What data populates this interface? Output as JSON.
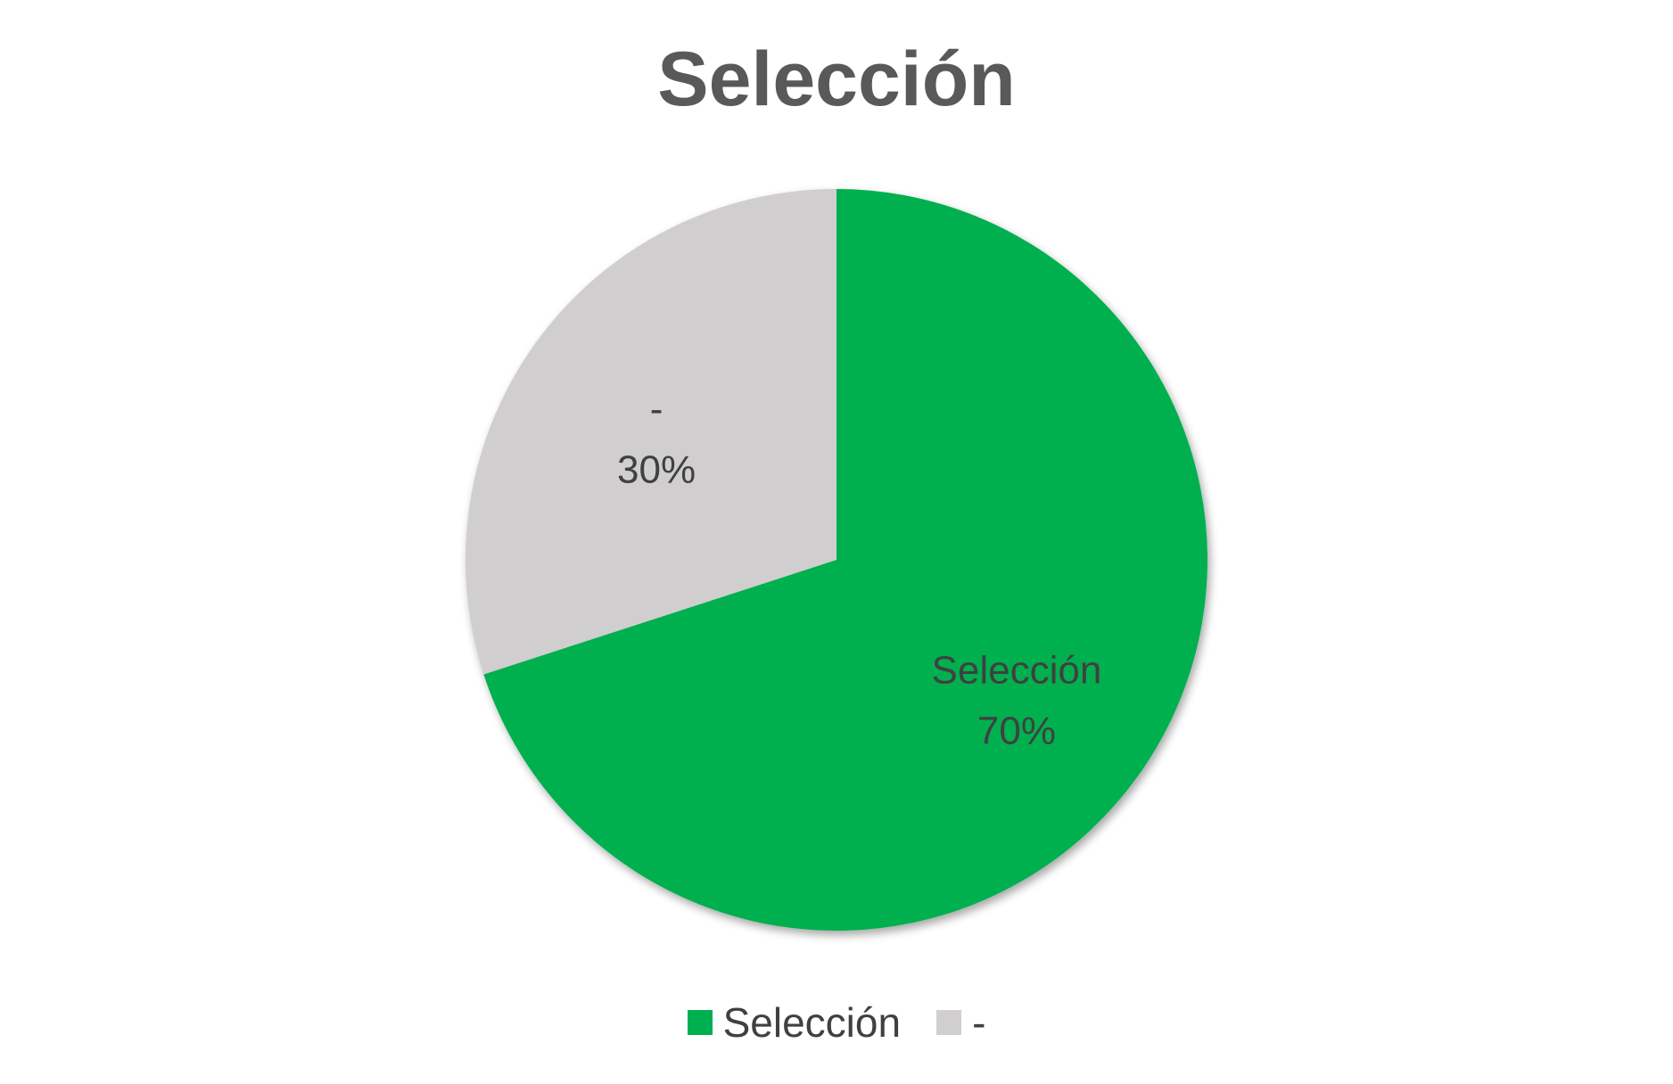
{
  "chart_data": {
    "type": "pie",
    "title": "Selección",
    "categories": [
      "Selección",
      "-"
    ],
    "values": [
      70,
      30
    ],
    "labels": [
      "70%",
      "30%"
    ],
    "colors": [
      "#00b050",
      "#d0cece"
    ],
    "legend_position": "bottom"
  },
  "legend": {
    "items": [
      {
        "label": "Selección",
        "color": "#00b050"
      },
      {
        "label": "-",
        "color": "#d0cece"
      }
    ]
  }
}
